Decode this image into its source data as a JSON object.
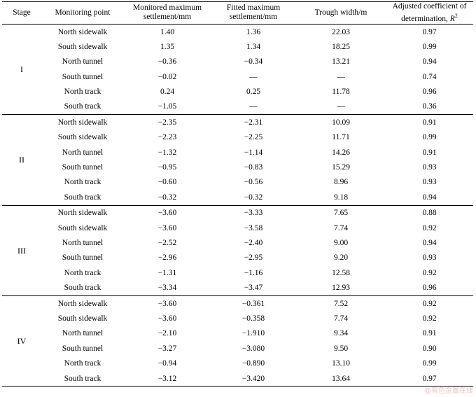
{
  "headers": {
    "stage": "Stage",
    "point": "Monitoring point",
    "monitored_line1": "Monitored maximum",
    "monitored_line2": "settlement/mm",
    "fitted_line1": "Fitted maximum",
    "fitted_line2": "settlement/mm",
    "trough": "Trough width/m",
    "r2_line1": "Adjusted coefficient of",
    "r2_line2": "determination, ",
    "r2_symbol": "R",
    "r2_exp": "2"
  },
  "groups": [
    {
      "stage": "I",
      "rows": [
        {
          "point": "North sidewalk",
          "monitored": "1.40",
          "fitted": "1.36",
          "trough": "22.03",
          "r2": "0.97"
        },
        {
          "point": "South sidewalk",
          "monitored": "1.35",
          "fitted": "1.34",
          "trough": "18.25",
          "r2": "0.99"
        },
        {
          "point": "North tunnel",
          "monitored": "−0.36",
          "fitted": "−0.34",
          "trough": "13.21",
          "r2": "0.94"
        },
        {
          "point": "South tunnel",
          "monitored": "−0.02",
          "fitted": "—",
          "trough": "—",
          "r2": "0.74"
        },
        {
          "point": "North track",
          "monitored": "0.24",
          "fitted": "0.25",
          "trough": "11.78",
          "r2": "0.96"
        },
        {
          "point": "South track",
          "monitored": "−1.05",
          "fitted": "—",
          "trough": "—",
          "r2": "0.36"
        }
      ]
    },
    {
      "stage": "II",
      "rows": [
        {
          "point": "North sidewalk",
          "monitored": "−2.35",
          "fitted": "−2.31",
          "trough": "10.09",
          "r2": "0.91"
        },
        {
          "point": "South sidewalk",
          "monitored": "−2.23",
          "fitted": "−2.25",
          "trough": "11.71",
          "r2": "0.99"
        },
        {
          "point": "North tunnel",
          "monitored": "−1.32",
          "fitted": "−1.14",
          "trough": "14.26",
          "r2": "0.91"
        },
        {
          "point": "South tunnel",
          "monitored": "−0.95",
          "fitted": "−0.83",
          "trough": "15.29",
          "r2": "0.93"
        },
        {
          "point": "North track",
          "monitored": "−0.60",
          "fitted": "−0.56",
          "trough": "8.96",
          "r2": "0.93"
        },
        {
          "point": "South track",
          "monitored": "−0.32",
          "fitted": "−0.32",
          "trough": "9.18",
          "r2": "0.94"
        }
      ]
    },
    {
      "stage": "III",
      "rows": [
        {
          "point": "North sidewalk",
          "monitored": "−3.60",
          "fitted": "−3.33",
          "trough": "7.65",
          "r2": "0.88"
        },
        {
          "point": "South sidewalk",
          "monitored": "−3.60",
          "fitted": "−3.58",
          "trough": "7.74",
          "r2": "0.92"
        },
        {
          "point": "North tunnel",
          "monitored": "−2.52",
          "fitted": "−2.40",
          "trough": "9.00",
          "r2": "0.94"
        },
        {
          "point": "South tunnel",
          "monitored": "−2.96",
          "fitted": "−2.95",
          "trough": "9.20",
          "r2": "0.93"
        },
        {
          "point": "North track",
          "monitored": "−1.31",
          "fitted": "−1.16",
          "trough": "12.58",
          "r2": "0.92"
        },
        {
          "point": "South track",
          "monitored": "−3.34",
          "fitted": "−3.47",
          "trough": "12.93",
          "r2": "0.96"
        }
      ]
    },
    {
      "stage": "IV",
      "rows": [
        {
          "point": "North sidewalk",
          "monitored": "−3.60",
          "fitted": "−0.361",
          "trough": "7.52",
          "r2": "0.92"
        },
        {
          "point": "South sidewalk",
          "monitored": "−3.60",
          "fitted": "−0.358",
          "trough": "7.74",
          "r2": "0.92"
        },
        {
          "point": "North tunnel",
          "monitored": "−2.10",
          "fitted": "−1.910",
          "trough": "9.34",
          "r2": "0.91"
        },
        {
          "point": "South tunnel",
          "monitored": "−3.27",
          "fitted": "−3.080",
          "trough": "9.50",
          "r2": "0.90"
        },
        {
          "point": "North track",
          "monitored": "−0.94",
          "fitted": "−0.890",
          "trough": "13.10",
          "r2": "0.99"
        },
        {
          "point": "South track",
          "monitored": "−3.12",
          "fitted": "−3.420",
          "trough": "13.64",
          "r2": "0.97"
        }
      ]
    }
  ],
  "watermark": "@有色金属在线"
}
